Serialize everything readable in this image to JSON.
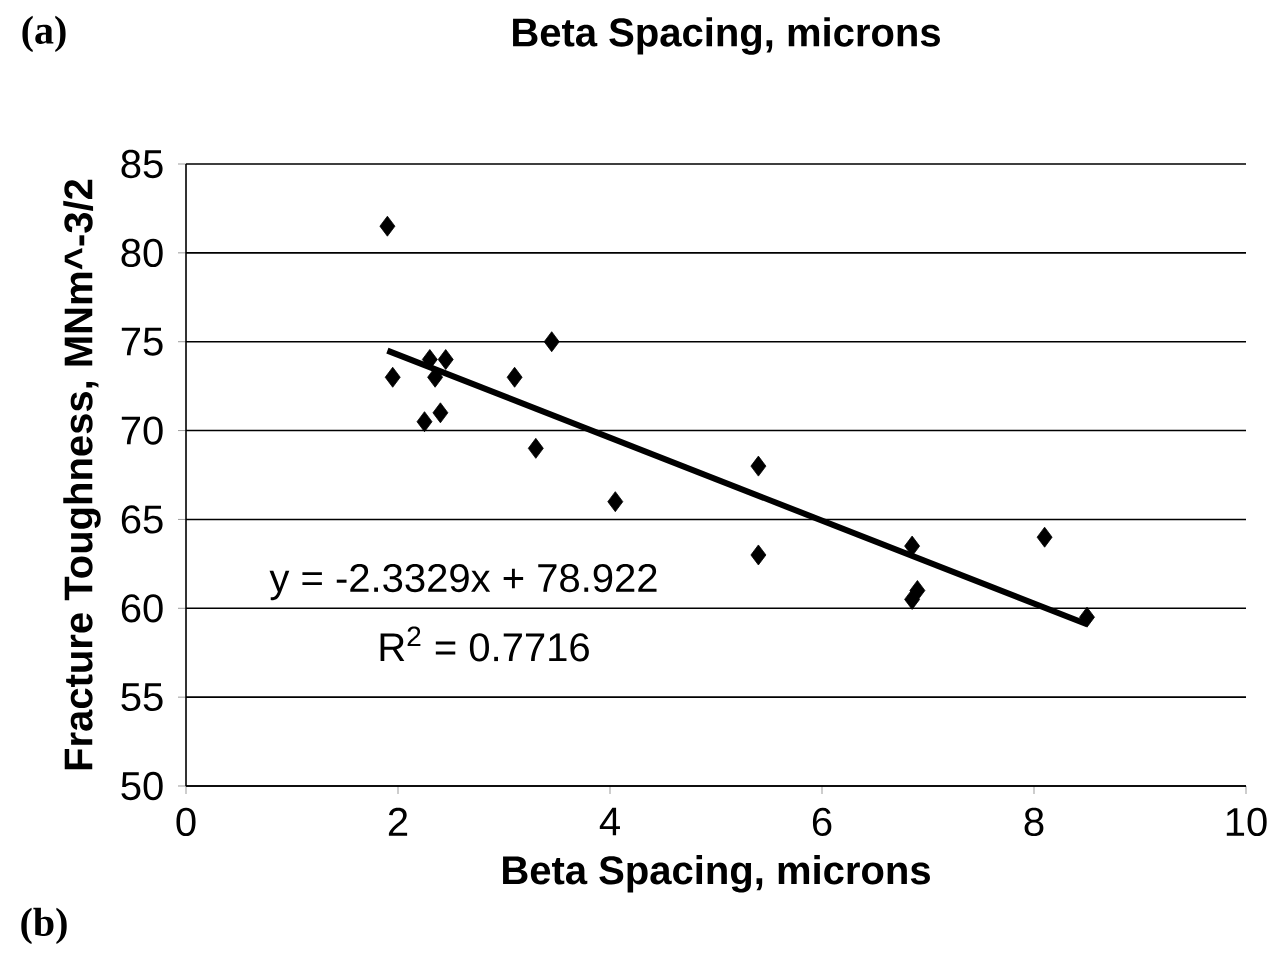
{
  "chart_data": {
    "type": "scatter",
    "title": "Beta Spacing, microns",
    "xlabel": "Beta Spacing, microns",
    "ylabel": "Fracture Toughness, MNm^-3/2",
    "annotations": [
      "y = -2.3329x + 78.922",
      "R$^{2}$ = 0.7716",
      "(a)",
      "(b)"
    ],
    "xlim": [
      0,
      10
    ],
    "xticks": [
      0,
      2,
      4,
      6,
      8,
      10
    ],
    "ylim": [
      50,
      85
    ],
    "yticks": [
      50,
      55,
      60,
      65,
      70,
      75,
      80,
      85
    ],
    "grid": "y",
    "series": [
      {
        "marker": "diamond",
        "color": "#000000",
        "x": [
          1.9,
          1.95,
          2.25,
          2.3,
          2.35,
          2.4,
          2.45,
          3.1,
          3.3,
          3.45,
          4.05,
          5.4,
          5.4,
          6.85,
          6.85,
          6.9,
          8.1,
          8.5
        ],
        "values": [
          81.5,
          73,
          70.5,
          74,
          73,
          71,
          74,
          73,
          69,
          75,
          66,
          68,
          63,
          63.5,
          60.5,
          61,
          64,
          59.5
        ]
      },
      {
        "type": "line",
        "marker": "none",
        "color": "#000000",
        "x": [
          1.9,
          8.5
        ],
        "values": [
          74.5,
          59.1
        ]
      }
    ]
  }
}
